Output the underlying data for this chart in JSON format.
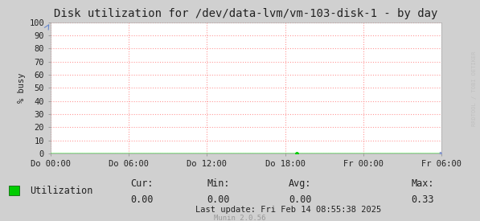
{
  "title": "Disk utilization for /dev/data-lvm/vm-103-disk-1 - by day",
  "ylabel": "% busy",
  "background_color": "#d0d0d0",
  "plot_bg_color": "#ffffff",
  "grid_color": "#ff9999",
  "title_color": "#222222",
  "tick_label_color": "#222222",
  "axis_color": "#555555",
  "ylim": [
    0,
    100
  ],
  "yticks": [
    0,
    10,
    20,
    30,
    40,
    50,
    60,
    70,
    80,
    90,
    100
  ],
  "xtick_labels": [
    "Do 00:00",
    "Do 06:00",
    "Do 12:00",
    "Do 18:00",
    "Fr 00:00",
    "Fr 06:00"
  ],
  "legend_label": "Utilization",
  "legend_color": "#00cc00",
  "cur_val": "0.00",
  "min_val": "0.00",
  "avg_val": "0.00",
  "max_val": "0.33",
  "last_update": "Last update: Fri Feb 14 08:55:38 2025",
  "munin_version": "Munin 2.0.56",
  "watermark": "RRDTOOL / TOBI OETIKER",
  "line_color": "#00cc00",
  "font_family": "DejaVu Sans Mono",
  "title_fontsize": 10,
  "axis_fontsize": 7.5,
  "legend_fontsize": 8.5,
  "stats_fontsize": 8.5,
  "figsize": [
    5.97,
    2.75
  ],
  "dpi": 100
}
